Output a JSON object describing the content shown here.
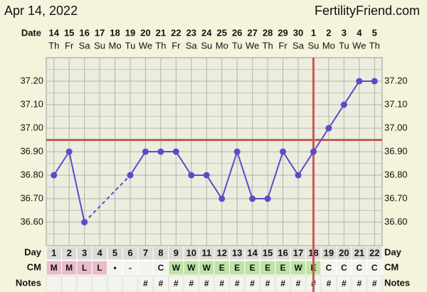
{
  "chart_data": {
    "type": "line",
    "header_date": "Apr 14, 2022",
    "site": "FertilityFriend.com",
    "row_labels": {
      "date": "Date",
      "day": "Day",
      "cm": "CM",
      "notes": "Notes"
    },
    "dates": [
      "14",
      "15",
      "16",
      "17",
      "18",
      "19",
      "20",
      "21",
      "22",
      "23",
      "24",
      "25",
      "26",
      "27",
      "28",
      "29",
      "30",
      "1",
      "2",
      "3",
      "4",
      "5"
    ],
    "weekdays": [
      "Th",
      "Fr",
      "Sa",
      "Su",
      "Mo",
      "Tu",
      "We",
      "Th",
      "Fr",
      "Sa",
      "Su",
      "Mo",
      "Tu",
      "We",
      "Th",
      "Fr",
      "Sa",
      "Su",
      "Mo",
      "Tu",
      "We",
      "Th"
    ],
    "categories": [
      "1",
      "2",
      "3",
      "4",
      "5",
      "6",
      "7",
      "8",
      "9",
      "10",
      "11",
      "12",
      "13",
      "14",
      "15",
      "16",
      "17",
      "18",
      "19",
      "20",
      "21",
      "22"
    ],
    "cm": [
      "M",
      "M",
      "L",
      "L",
      "•",
      "-",
      null,
      "C",
      "W",
      "W",
      "W",
      "E",
      "E",
      "E",
      "E",
      "E",
      "W",
      "E",
      "C",
      "C",
      "C",
      "C"
    ],
    "notes": [
      null,
      null,
      null,
      null,
      null,
      null,
      "#",
      "#",
      "#",
      "#",
      "#",
      "#",
      "#",
      "#",
      "#",
      "#",
      "#",
      "#",
      "#",
      "#",
      "#",
      "#"
    ],
    "values": [
      36.8,
      36.9,
      36.6,
      null,
      null,
      36.8,
      36.9,
      36.9,
      36.9,
      36.8,
      36.8,
      36.7,
      36.9,
      36.7,
      36.7,
      36.9,
      36.8,
      36.9,
      37.0,
      37.1,
      37.2,
      37.2
    ],
    "color": "#5a4bc8",
    "coverline": 36.95,
    "ovulation_day": 18,
    "marker_color": "#c85a55",
    "ylim": [
      36.5,
      37.3
    ],
    "yticks": [
      {
        "value": 36.6,
        "label": "36.60"
      },
      {
        "value": 36.7,
        "label": "36.70"
      },
      {
        "value": 36.8,
        "label": "36.80"
      },
      {
        "value": 36.9,
        "label": "36.90"
      },
      {
        "value": 37.0,
        "label": "37.00"
      },
      {
        "value": 37.1,
        "label": "37.10"
      },
      {
        "value": 37.2,
        "label": "37.20"
      }
    ],
    "minor_yticks": [
      36.55,
      36.65,
      36.75,
      36.85,
      36.95,
      37.05,
      37.15,
      37.25
    ],
    "grid": true
  }
}
